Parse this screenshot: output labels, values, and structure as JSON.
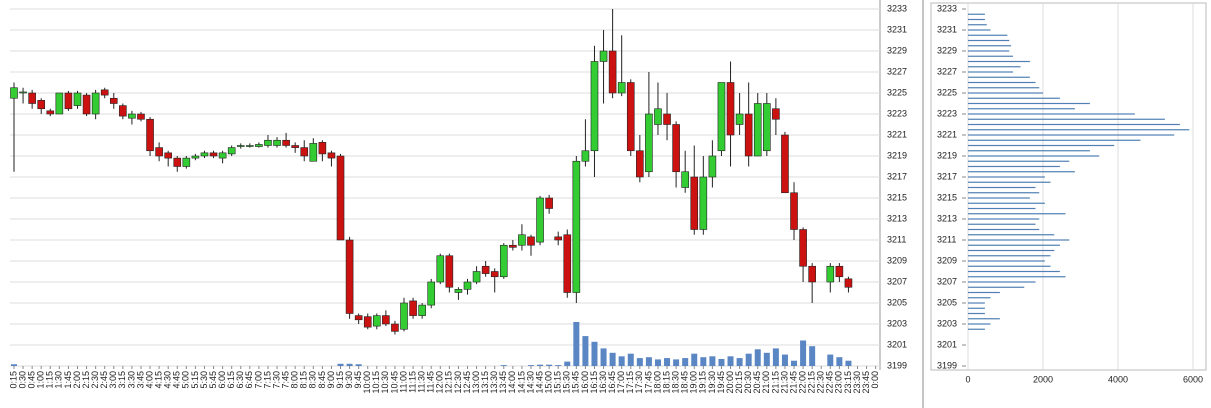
{
  "chart_data": [
    {
      "type": "candlestick",
      "x": [
        "0:15",
        "0:30",
        "0:45",
        "1:00",
        "1:15",
        "1:30",
        "1:45",
        "2:00",
        "2:15",
        "2:30",
        "2:45",
        "3:00",
        "3:15",
        "3:30",
        "3:45",
        "4:00",
        "4:15",
        "4:30",
        "4:45",
        "5:00",
        "5:15",
        "5:30",
        "5:45",
        "6:00",
        "6:15",
        "6:30",
        "6:45",
        "7:00",
        "7:15",
        "7:30",
        "7:45",
        "8:00",
        "8:15",
        "8:30",
        "8:45",
        "9:00",
        "9:15",
        "9:30",
        "9:45",
        "10:00",
        "10:15",
        "10:30",
        "10:45",
        "11:00",
        "11:15",
        "11:30",
        "11:45",
        "12:00",
        "12:15",
        "12:30",
        "12:45",
        "13:00",
        "13:15",
        "13:30",
        "13:45",
        "14:00",
        "14:15",
        "14:30",
        "14:45",
        "15:00",
        "15:15",
        "15:30",
        "15:45",
        "16:00",
        "16:15",
        "16:30",
        "16:45",
        "17:00",
        "17:15",
        "17:30",
        "17:45",
        "18:00",
        "18:15",
        "18:30",
        "18:45",
        "19:00",
        "19:15",
        "19:30",
        "19:45",
        "20:00",
        "20:15",
        "20:30",
        "20:45",
        "21:00",
        "21:15",
        "21:30",
        "21:45",
        "22:00",
        "22:15",
        "22:30",
        "22:45",
        "23:00",
        "23:15",
        "23:30",
        "23:45",
        "0:00"
      ],
      "open": [
        3224.5,
        3225,
        3225,
        3224.3,
        3223.3,
        3223,
        3225,
        3223.8,
        3224.8,
        3223,
        3225.3,
        3224.5,
        3223.8,
        3222.6,
        3223,
        3222.5,
        3219.8,
        3219.3,
        3218.8,
        3218,
        3218.8,
        3219,
        3219.3,
        3218.8,
        3219.2,
        3219.9,
        3220,
        3219.9,
        3220,
        3220,
        3220.5,
        3220,
        3219.8,
        3218.5,
        3220.3,
        3219.3,
        3219,
        3211,
        3203.8,
        3203.7,
        3202.8,
        3203.8,
        3203,
        3202.5,
        3205.2,
        3203.8,
        3204.8,
        3207,
        3209.5,
        3206,
        3206.3,
        3207,
        3208.5,
        3208,
        3207.5,
        3210.5,
        3210.5,
        3211.3,
        3210.8,
        3215,
        3211.3,
        3211.5,
        3206,
        3218.5,
        3219.5,
        3228,
        3229,
        3225,
        3226,
        3219.5,
        3217.5,
        3222,
        3223,
        3222,
        3216,
        3217,
        3212,
        3217,
        3219.5,
        3226,
        3222,
        3223,
        3219,
        3219.5,
        3223.5,
        3221,
        3215.5,
        3212,
        3208.5,
        null,
        3207,
        3208.5,
        3207.3,
        null,
        null,
        null
      ],
      "high": [
        3226,
        3225.5,
        3225.3,
        3224.5,
        3223.5,
        3225,
        3225.2,
        3225.2,
        3225,
        3225.3,
        3225.5,
        3225,
        3224,
        3223.3,
        3223.2,
        3222.7,
        3220.3,
        3219.5,
        3219,
        3219,
        3219.2,
        3219.5,
        3219.5,
        3219.5,
        3220,
        3220.2,
        3220.2,
        3220.3,
        3221,
        3220.8,
        3221.2,
        3220.3,
        3220.5,
        3220.7,
        3220.5,
        3219.5,
        3219.2,
        3211.3,
        3204,
        3204,
        3204,
        3204.3,
        3203.3,
        3205.5,
        3205.5,
        3205,
        3207.3,
        3209.7,
        3209.7,
        3206.5,
        3207.3,
        3208.5,
        3209,
        3208.3,
        3210.7,
        3211,
        3212.5,
        3211.5,
        3215.2,
        3215.3,
        3211.8,
        3212,
        3219,
        3222.5,
        3229.5,
        3231,
        3233,
        3230.5,
        3226.3,
        3221,
        3227,
        3226,
        3225,
        3222.3,
        3219.5,
        3220,
        3219,
        3220.5,
        3226,
        3228,
        3225,
        3226,
        3225,
        3225,
        3224.5,
        3221.3,
        3216.5,
        3212.2,
        3208.8,
        null,
        3208.8,
        3208.8,
        3207.5,
        null,
        null,
        null
      ],
      "low": [
        3217.5,
        3224,
        3223.5,
        3223,
        3222.8,
        3223,
        3223.3,
        3223.5,
        3222.8,
        3222.5,
        3224.5,
        3223.5,
        3222.5,
        3222,
        3222.3,
        3219,
        3218.5,
        3218,
        3217.5,
        3217.8,
        3218.6,
        3218.8,
        3218.8,
        3218.3,
        3219,
        3219.7,
        3219.8,
        3219.8,
        3219.8,
        3219.8,
        3219.8,
        3219.3,
        3218.5,
        3218.5,
        3218.5,
        3218,
        3211,
        3203.5,
        3203,
        3202.5,
        3202.5,
        3202.8,
        3202,
        3202.3,
        3203.5,
        3203.5,
        3204.5,
        3206.8,
        3206,
        3205.3,
        3205.8,
        3206.8,
        3207.5,
        3206,
        3207.3,
        3210,
        3210,
        3209.5,
        3210.5,
        3213.5,
        3210.5,
        3205.5,
        3205,
        3218,
        3217,
        3224,
        3224.5,
        3224.7,
        3219,
        3216.5,
        3217,
        3221,
        3220.5,
        3216,
        3215.5,
        3211.5,
        3211.5,
        3216,
        3219,
        3218,
        3221,
        3218,
        3219,
        3219,
        3221,
        3215.5,
        3211,
        3207,
        3205,
        null,
        3206,
        3207,
        3206,
        null,
        null,
        null
      ],
      "close": [
        3225.5,
        3225.1,
        3224,
        3223.5,
        3223,
        3225,
        3223.5,
        3225,
        3223,
        3225,
        3224.8,
        3224,
        3222.8,
        3223,
        3222.5,
        3219.5,
        3219,
        3218.8,
        3218,
        3218.8,
        3219,
        3219.3,
        3219,
        3219.3,
        3219.8,
        3220,
        3220,
        3220.1,
        3220.5,
        3220.5,
        3220,
        3219.8,
        3219,
        3220.2,
        3219.2,
        3218.8,
        3211,
        3204,
        3203.4,
        3202.7,
        3203.8,
        3203,
        3202.3,
        3205,
        3203.8,
        3204.8,
        3207,
        3209.5,
        3206.5,
        3206.3,
        3207,
        3208,
        3207.8,
        3207.5,
        3210.5,
        3210.3,
        3211.5,
        3210.5,
        3215,
        3214,
        3211,
        3206,
        3218.5,
        3219.5,
        3228,
        3229,
        3225,
        3226,
        3219.5,
        3217,
        3223,
        3223.5,
        3222,
        3217.5,
        3217.5,
        3212,
        3217,
        3219,
        3226,
        3221,
        3223,
        3219,
        3224,
        3224,
        3222.5,
        3215.5,
        3212,
        3208.5,
        3207,
        null,
        3208.5,
        3207.5,
        3206.5,
        null,
        null,
        null
      ],
      "volume": [
        4,
        0,
        0,
        0,
        0,
        0,
        0,
        0,
        0,
        0,
        0,
        0,
        0,
        0,
        0,
        0,
        0,
        0,
        0,
        0,
        0,
        0,
        0,
        0,
        0,
        0,
        0,
        0,
        0,
        0,
        0,
        0,
        0,
        0,
        0,
        0,
        5,
        5,
        4,
        0,
        0,
        0,
        0,
        0,
        0,
        0,
        0,
        0,
        0,
        0,
        0,
        0,
        0,
        0,
        2,
        0,
        0,
        2,
        3,
        3,
        2,
        10,
        100,
        68,
        55,
        40,
        30,
        22,
        28,
        18,
        20,
        15,
        18,
        15,
        18,
        28,
        20,
        22,
        16,
        22,
        18,
        28,
        38,
        30,
        40,
        26,
        12,
        58,
        45,
        null,
        26,
        20,
        12,
        null,
        null,
        null
      ],
      "volume_ylim": [
        0,
        100
      ],
      "ylim": [
        3199,
        3233
      ],
      "yticks": [
        3199,
        3201,
        3203,
        3205,
        3207,
        3209,
        3211,
        3213,
        3215,
        3217,
        3219,
        3221,
        3223,
        3225,
        3227,
        3229,
        3231,
        3233
      ],
      "up_color": "#33cc33",
      "down_color": "#cc1111",
      "volume_color": "#5b86c4",
      "grid": true
    },
    {
      "type": "barh",
      "y": [
        3232.5,
        3232,
        3231.5,
        3231,
        3230.5,
        3230,
        3229.5,
        3229,
        3228.5,
        3228,
        3227.5,
        3227,
        3226.5,
        3226,
        3225.5,
        3225,
        3224.5,
        3224,
        3223.5,
        3223,
        3222.5,
        3222,
        3221.5,
        3221,
        3220.5,
        3220,
        3219.5,
        3219,
        3218.5,
        3218,
        3217.5,
        3217,
        3216.5,
        3216,
        3215.5,
        3215,
        3214.5,
        3214,
        3213.5,
        3213,
        3212.5,
        3212,
        3211.5,
        3211,
        3210.5,
        3210,
        3209.5,
        3209,
        3208.5,
        3208,
        3207.5,
        3207,
        3206.5,
        3206,
        3205.5,
        3205,
        3204.5,
        3204,
        3203.5,
        3203,
        3202.5
      ],
      "values": [
        450,
        450,
        500,
        600,
        1050,
        1100,
        1150,
        1100,
        1200,
        1650,
        1400,
        1200,
        1650,
        1800,
        1900,
        2000,
        2450,
        3250,
        2850,
        4450,
        5250,
        5650,
        5900,
        5500,
        4600,
        3900,
        3250,
        3500,
        2700,
        2450,
        2850,
        2050,
        2200,
        1800,
        1900,
        1650,
        2050,
        1800,
        2600,
        1900,
        1800,
        1900,
        2300,
        2700,
        2450,
        2300,
        2200,
        2050,
        2200,
        2450,
        2600,
        1800,
        1500,
        850,
        600,
        450,
        450,
        450,
        850,
        600,
        450
      ],
      "xlim": [
        0,
        6000
      ],
      "xticks": [
        0,
        2000,
        4000,
        6000
      ],
      "ylim": [
        3199,
        3233
      ],
      "yticks": [
        3199,
        3201,
        3203,
        3205,
        3207,
        3209,
        3211,
        3213,
        3215,
        3217,
        3219,
        3221,
        3223,
        3225,
        3227,
        3229,
        3231,
        3233
      ],
      "color": "#4f7fb3",
      "grid": true
    }
  ]
}
